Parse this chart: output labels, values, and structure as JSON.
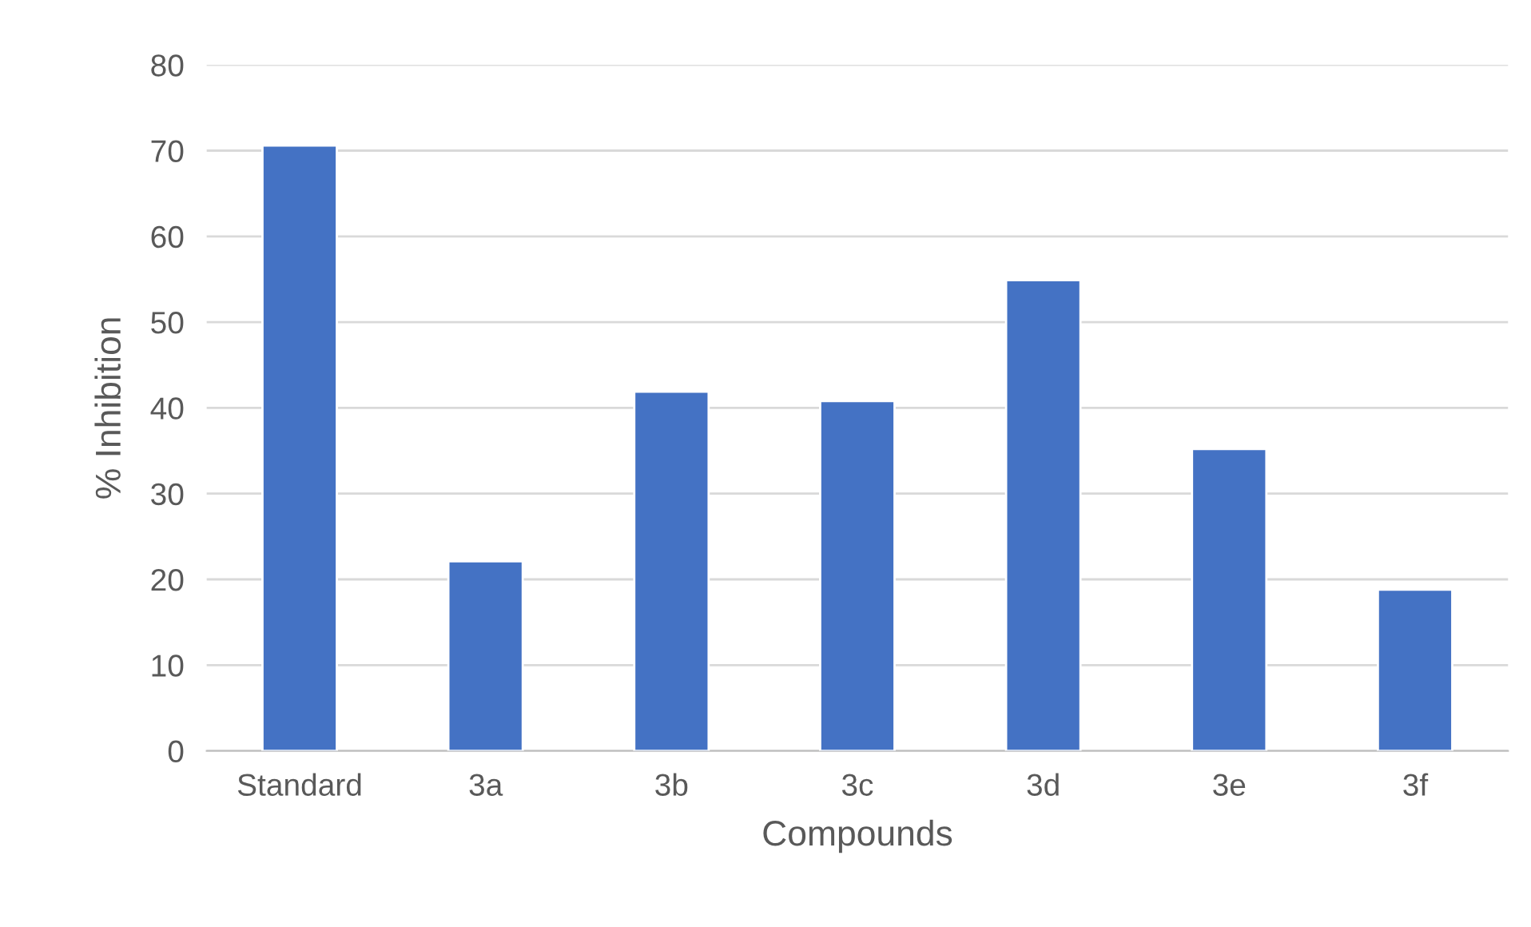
{
  "chart_data": {
    "type": "bar",
    "xlabel": "Compounds",
    "ylabel": "% Inhibition",
    "categories": [
      "Standard",
      "3a",
      "3b",
      "3c",
      "3d",
      "3e",
      "3f"
    ],
    "values": [
      70.6,
      22.1,
      41.9,
      40.8,
      54.9,
      35.2,
      18.8
    ],
    "color": "#4472c4",
    "ylim": [
      0,
      80
    ],
    "yticks": [
      0,
      10,
      20,
      30,
      40,
      50,
      60,
      70,
      80
    ],
    "grid": "y",
    "legend": false
  }
}
